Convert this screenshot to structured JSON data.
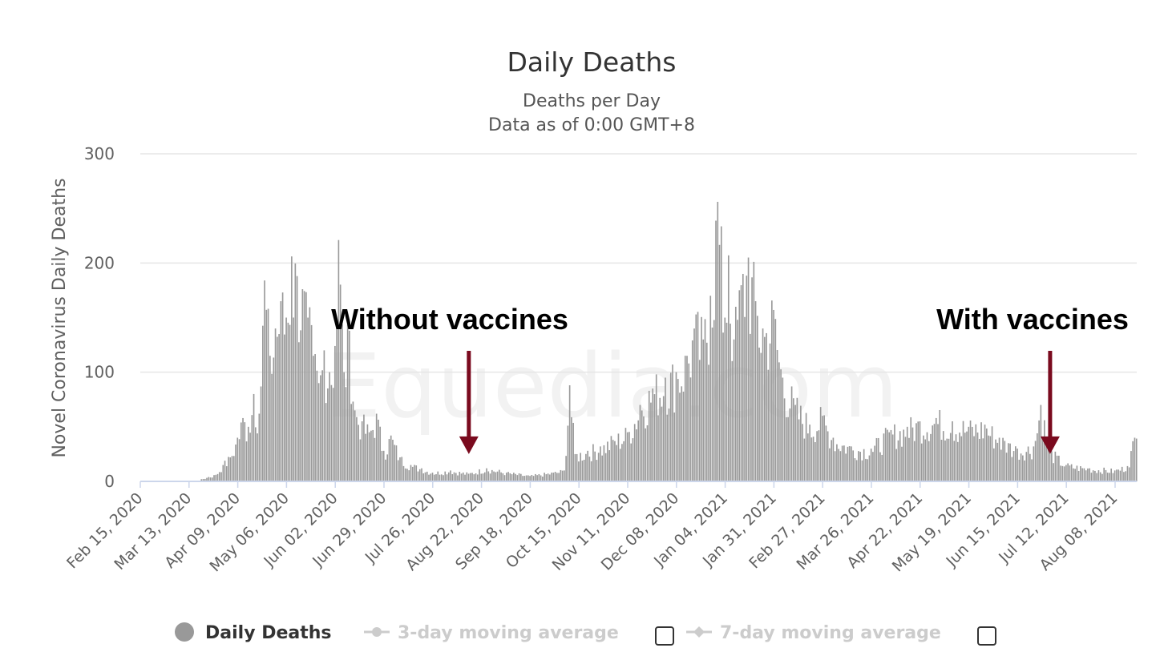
{
  "chart_data": {
    "type": "bar",
    "title": "Daily Deaths",
    "subtitle": [
      "Deaths per Day",
      "Data as of 0:00 GMT+8"
    ],
    "ylabel": "Novel Coronavirus Daily Deaths",
    "ylim": [
      0,
      300
    ],
    "yticks": [
      "0",
      "100",
      "200",
      "300"
    ],
    "grid": true,
    "x_start": "Feb 15, 2020",
    "x_end": "Aug 20, 2021",
    "xticks": [
      "Feb 15, 2020",
      "Mar 13, 2020",
      "Apr 09, 2020",
      "May 06, 2020",
      "Jun 02, 2020",
      "Jun 29, 2020",
      "Jul 26, 2020",
      "Aug 22, 2020",
      "Sep 18, 2020",
      "Oct 15, 2020",
      "Nov 11, 2020",
      "Dec 08, 2020",
      "Jan 04, 2021",
      "Jan 31, 2021",
      "Feb 27, 2021",
      "Mar 26, 2021",
      "Apr 22, 2021",
      "May 19, 2021",
      "Jun 15, 2021",
      "Jul 12, 2021",
      "Aug 08, 2021"
    ],
    "bar_color": "#999999",
    "series": [
      {
        "name": "Daily Deaths",
        "values_note": "approximate, estimated from gridlines",
        "points": [
          {
            "date": "Mar 20, 2020",
            "value": 2
          },
          {
            "date": "Mar 24, 2020",
            "value": 4
          },
          {
            "date": "Mar 28, 2020",
            "value": 6
          },
          {
            "date": "Apr 01, 2020",
            "value": 15
          },
          {
            "date": "Apr 05, 2020",
            "value": 22
          },
          {
            "date": "Apr 09, 2020",
            "value": 40
          },
          {
            "date": "Apr 12, 2020",
            "value": 58
          },
          {
            "date": "Apr 15, 2020",
            "value": 50
          },
          {
            "date": "Apr 18, 2020",
            "value": 80
          },
          {
            "date": "Apr 21, 2020",
            "value": 62
          },
          {
            "date": "Apr 24, 2020",
            "value": 184
          },
          {
            "date": "Apr 27, 2020",
            "value": 115
          },
          {
            "date": "Apr 30, 2020",
            "value": 140
          },
          {
            "date": "May 03, 2020",
            "value": 165
          },
          {
            "date": "May 06, 2020",
            "value": 150
          },
          {
            "date": "May 09, 2020",
            "value": 206
          },
          {
            "date": "May 12, 2020",
            "value": 188
          },
          {
            "date": "May 15, 2020",
            "value": 176
          },
          {
            "date": "May 18, 2020",
            "value": 150
          },
          {
            "date": "May 21, 2020",
            "value": 115
          },
          {
            "date": "May 24, 2020",
            "value": 90
          },
          {
            "date": "May 27, 2020",
            "value": 120
          },
          {
            "date": "May 30, 2020",
            "value": 100
          },
          {
            "date": "Jun 02, 2020",
            "value": 124
          },
          {
            "date": "Jun 04, 2020",
            "value": 221
          },
          {
            "date": "Jun 07, 2020",
            "value": 100
          },
          {
            "date": "Jun 10, 2020",
            "value": 138
          },
          {
            "date": "Jun 13, 2020",
            "value": 65
          },
          {
            "date": "Jun 17, 2020",
            "value": 55
          },
          {
            "date": "Jun 21, 2020",
            "value": 45
          },
          {
            "date": "Jun 25, 2020",
            "value": 62
          },
          {
            "date": "Jun 29, 2020",
            "value": 28
          },
          {
            "date": "Jul 03, 2020",
            "value": 42
          },
          {
            "date": "Jul 08, 2020",
            "value": 22
          },
          {
            "date": "Jul 14, 2020",
            "value": 15
          },
          {
            "date": "Jul 20, 2020",
            "value": 12
          },
          {
            "date": "Jul 26, 2020",
            "value": 8
          },
          {
            "date": "Aug 05, 2020",
            "value": 10
          },
          {
            "date": "Aug 15, 2020",
            "value": 7
          },
          {
            "date": "Aug 25, 2020",
            "value": 12
          },
          {
            "date": "Sep 05, 2020",
            "value": 8
          },
          {
            "date": "Sep 18, 2020",
            "value": 5
          },
          {
            "date": "Oct 01, 2020",
            "value": 8
          },
          {
            "date": "Oct 07, 2020",
            "value": 10
          },
          {
            "date": "Oct 10, 2020",
            "value": 88
          },
          {
            "date": "Oct 13, 2020",
            "value": 25
          },
          {
            "date": "Oct 20, 2020",
            "value": 28
          },
          {
            "date": "Oct 27, 2020",
            "value": 32
          },
          {
            "date": "Nov 03, 2020",
            "value": 38
          },
          {
            "date": "Nov 11, 2020",
            "value": 45
          },
          {
            "date": "Nov 18, 2020",
            "value": 70
          },
          {
            "date": "Nov 25, 2020",
            "value": 85
          },
          {
            "date": "Dec 02, 2020",
            "value": 95
          },
          {
            "date": "Dec 08, 2020",
            "value": 100
          },
          {
            "date": "Dec 14, 2020",
            "value": 115
          },
          {
            "date": "Dec 18, 2020",
            "value": 140
          },
          {
            "date": "Dec 23, 2020",
            "value": 130
          },
          {
            "date": "Dec 27, 2020",
            "value": 170
          },
          {
            "date": "Dec 31, 2020",
            "value": 256
          },
          {
            "date": "Jan 04, 2021",
            "value": 150
          },
          {
            "date": "Jan 06, 2021",
            "value": 207
          },
          {
            "date": "Jan 09, 2021",
            "value": 130
          },
          {
            "date": "Jan 14, 2021",
            "value": 190
          },
          {
            "date": "Jan 17, 2021",
            "value": 205
          },
          {
            "date": "Jan 21, 2021",
            "value": 165
          },
          {
            "date": "Jan 25, 2021",
            "value": 140
          },
          {
            "date": "Jan 31, 2021",
            "value": 157
          },
          {
            "date": "Feb 05, 2021",
            "value": 95
          },
          {
            "date": "Feb 12, 2021",
            "value": 70
          },
          {
            "date": "Feb 20, 2021",
            "value": 52
          },
          {
            "date": "Feb 27, 2021",
            "value": 60
          },
          {
            "date": "Mar 05, 2021",
            "value": 40
          },
          {
            "date": "Mar 15, 2021",
            "value": 32
          },
          {
            "date": "Mar 26, 2021",
            "value": 30
          },
          {
            "date": "Apr 05, 2021",
            "value": 45
          },
          {
            "date": "Apr 15, 2021",
            "value": 50
          },
          {
            "date": "Apr 22, 2021",
            "value": 55
          },
          {
            "date": "May 01, 2021",
            "value": 58
          },
          {
            "date": "May 10, 2021",
            "value": 55
          },
          {
            "date": "May 19, 2021",
            "value": 50
          },
          {
            "date": "May 28, 2021",
            "value": 52
          },
          {
            "date": "Jun 05, 2021",
            "value": 40
          },
          {
            "date": "Jun 10, 2021",
            "value": 35
          },
          {
            "date": "Jun 15, 2021",
            "value": 30
          },
          {
            "date": "Jun 24, 2021",
            "value": 32
          },
          {
            "date": "Jun 28, 2021",
            "value": 70
          },
          {
            "date": "Jul 03, 2021",
            "value": 28
          },
          {
            "date": "Jul 12, 2021",
            "value": 15
          },
          {
            "date": "Jul 25, 2021",
            "value": 12
          },
          {
            "date": "Aug 08, 2021",
            "value": 10
          },
          {
            "date": "Aug 15, 2021",
            "value": 14
          },
          {
            "date": "Aug 19, 2021",
            "value": 40
          }
        ]
      }
    ],
    "legend": {
      "placement": "bottom",
      "items": [
        {
          "label": "Daily Deaths",
          "active": true,
          "color": "#999999",
          "text_color": "#333333"
        },
        {
          "label": "3-day moving average",
          "active": false,
          "color": "#cccccc",
          "text_color": "#cccccc"
        },
        {
          "label": "7-day moving average",
          "active": false,
          "color": "#cccccc",
          "text_color": "#cccccc"
        }
      ]
    },
    "annotations": [
      {
        "text": "Without vaccines",
        "arrow_date": "Aug 15, 2020",
        "arrow_value": 25
      },
      {
        "text": "With vaccines",
        "arrow_date": "Jul 03, 2021",
        "arrow_value": 25
      }
    ],
    "annotation_color": "#7a0a1e",
    "watermark": "Equedia.com"
  }
}
